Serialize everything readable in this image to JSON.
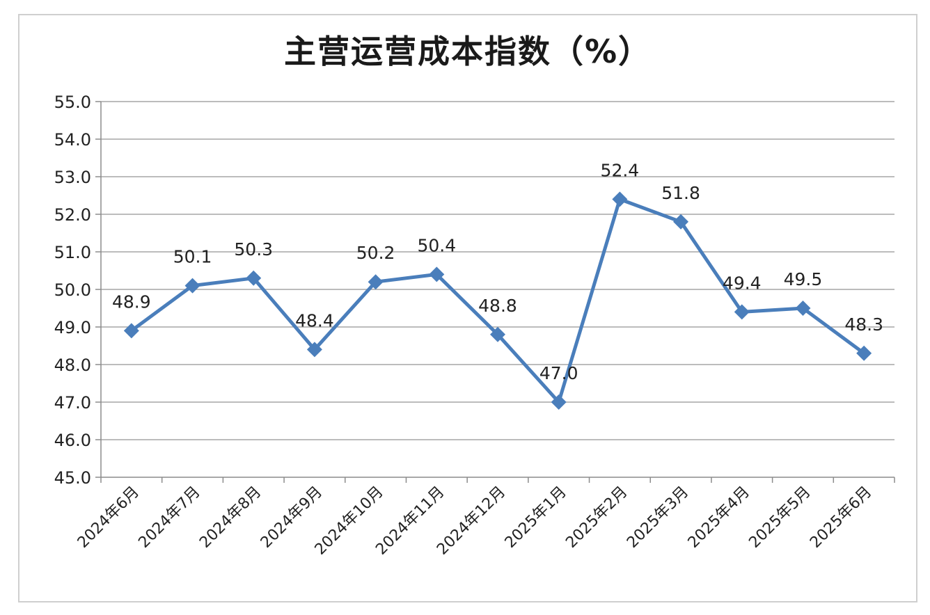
{
  "chart_data": {
    "type": "line",
    "title": "主营运营成本指数（%）",
    "categories": [
      "2024年6月",
      "2024年7月",
      "2024年8月",
      "2024年9月",
      "2024年10月",
      "2024年11月",
      "2024年12月",
      "2025年1月",
      "2025年2月",
      "2025年3月",
      "2025年4月",
      "2025年5月",
      "2025年6月"
    ],
    "values": [
      48.9,
      50.1,
      50.3,
      48.4,
      50.2,
      50.4,
      48.8,
      47.0,
      52.4,
      51.8,
      49.4,
      49.5,
      48.3
    ],
    "ylim": [
      45,
      55
    ],
    "yticks": [
      "45.0",
      "46.0",
      "47.0",
      "48.0",
      "49.0",
      "50.0",
      "51.0",
      "52.0",
      "53.0",
      "54.0",
      "55.0"
    ],
    "data_labels": [
      "48.9",
      "50.1",
      "50.3",
      "48.4",
      "50.2",
      "50.4",
      "48.8",
      "47.0",
      "52.4",
      "51.8",
      "49.4",
      "49.5",
      "48.3"
    ],
    "grid": true,
    "legend": "none",
    "line_color": "#4a7ebb",
    "xlabel": "",
    "ylabel": ""
  }
}
